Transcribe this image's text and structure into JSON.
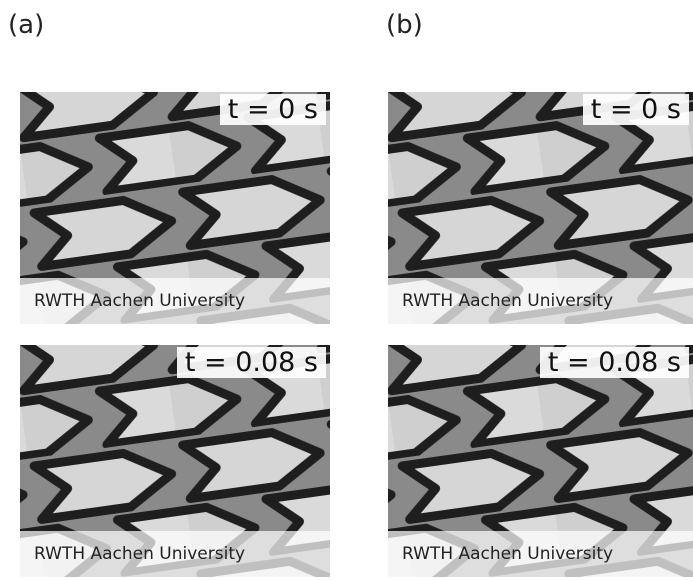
{
  "panels": [
    {
      "label": "(a)",
      "frames": [
        {
          "time": "t = 0 s",
          "caption": "RWTH Aachen University"
        },
        {
          "time": "t = 0.08 s",
          "caption": "RWTH Aachen University"
        }
      ]
    },
    {
      "label": "(b)",
      "frames": [
        {
          "time": "t = 0 s",
          "caption": "RWTH Aachen University"
        },
        {
          "time": "t = 0.08 s",
          "caption": "RWTH Aachen University"
        }
      ]
    }
  ]
}
